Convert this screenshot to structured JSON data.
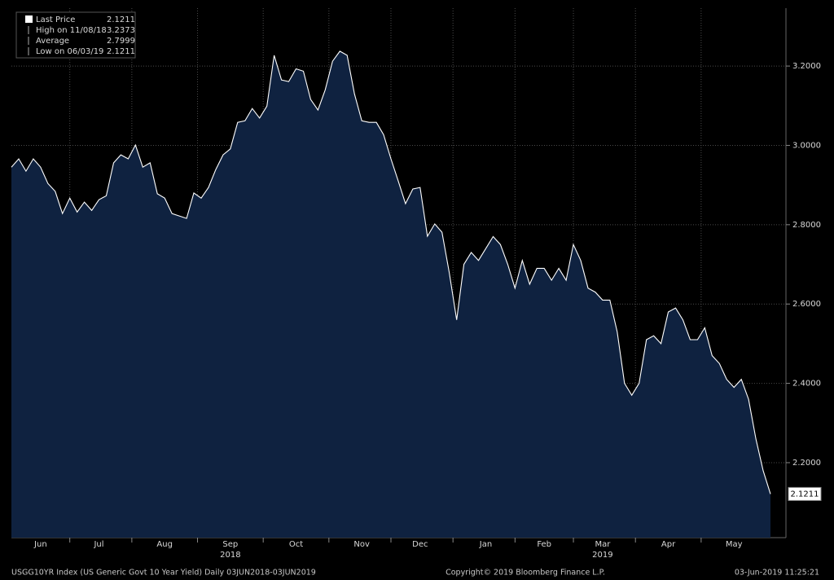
{
  "chart_data": {
    "type": "area",
    "legend": [
      {
        "label": "Last Price",
        "value": "2.1211"
      },
      {
        "label": "High on 11/08/18",
        "value": "3.2373"
      },
      {
        "label": "Average",
        "value": "2.7999"
      },
      {
        "label": "Low on 06/03/19",
        "value": "2.1211"
      }
    ],
    "last_label": "2.1211",
    "footer_left": "USGG10YR Index (US Generic Govt 10 Year Yield)  Daily 03JUN2018-03JUN2019",
    "footer_center": "Copyright© 2019 Bloomberg Finance L.P.",
    "footer_right": "03-Jun-2019 11:25:21",
    "categories": [
      null,
      null,
      null,
      null,
      "Jun",
      null,
      null,
      null,
      null,
      null,
      null,
      null,
      "Jul",
      null,
      null,
      null,
      null,
      null,
      null,
      null,
      null,
      "Aug",
      null,
      null,
      null,
      null,
      null,
      null,
      null,
      null,
      "Sep",
      null,
      null,
      null,
      null,
      null,
      null,
      null,
      null,
      "Oct",
      null,
      null,
      null,
      null,
      null,
      null,
      null,
      null,
      "Nov",
      null,
      null,
      null,
      null,
      null,
      null,
      null,
      "Dec",
      null,
      null,
      null,
      null,
      null,
      null,
      null,
      null,
      "Jan",
      null,
      null,
      null,
      null,
      null,
      null,
      null,
      "Feb",
      null,
      null,
      null,
      null,
      null,
      null,
      null,
      "Mar",
      null,
      null,
      null,
      null,
      null,
      null,
      null,
      null,
      "Apr",
      null,
      null,
      null,
      null,
      null,
      null,
      null,
      null,
      "May",
      null,
      null,
      null,
      null,
      null
    ],
    "year_categories": [
      null,
      null,
      null,
      null,
      null,
      null,
      null,
      null,
      null,
      null,
      null,
      null,
      null,
      null,
      null,
      null,
      null,
      null,
      null,
      null,
      null,
      null,
      null,
      null,
      null,
      null,
      null,
      null,
      null,
      null,
      "2018",
      null,
      null,
      null,
      null,
      null,
      null,
      null,
      null,
      null,
      null,
      null,
      null,
      null,
      null,
      null,
      null,
      null,
      null,
      null,
      null,
      null,
      null,
      null,
      null,
      null,
      null,
      null,
      null,
      null,
      null,
      null,
      null,
      null,
      null,
      null,
      null,
      null,
      null,
      null,
      null,
      null,
      null,
      null,
      null,
      null,
      null,
      null,
      null,
      null,
      null,
      "2019",
      null,
      null,
      null,
      null,
      null,
      null,
      null,
      null,
      null,
      null,
      null,
      null,
      null,
      null,
      null,
      null,
      null,
      null,
      null,
      null,
      null,
      null,
      null
    ],
    "values": [
      2.945,
      2.966,
      2.935,
      2.966,
      2.945,
      2.904,
      2.884,
      2.828,
      2.867,
      2.832,
      2.857,
      2.836,
      2.863,
      2.873,
      2.956,
      2.976,
      2.966,
      3.001,
      2.945,
      2.956,
      2.878,
      2.867,
      2.828,
      2.822,
      2.816,
      2.88,
      2.867,
      2.894,
      2.939,
      2.976,
      2.991,
      3.058,
      3.062,
      3.093,
      3.069,
      3.099,
      3.227,
      3.165,
      3.161,
      3.193,
      3.187,
      3.116,
      3.089,
      3.14,
      3.212,
      3.2373,
      3.227,
      3.13,
      3.062,
      3.058,
      3.058,
      3.027,
      2.966,
      2.91,
      2.853,
      2.89,
      2.894,
      2.771,
      2.802,
      2.781,
      2.678,
      2.56,
      2.7,
      2.73,
      2.71,
      2.74,
      2.77,
      2.75,
      2.7,
      2.64,
      2.71,
      2.65,
      2.69,
      2.69,
      2.66,
      2.69,
      2.66,
      2.75,
      2.71,
      2.64,
      2.63,
      2.61,
      2.61,
      2.53,
      2.4,
      2.37,
      2.4,
      2.51,
      2.52,
      2.5,
      2.58,
      2.59,
      2.56,
      2.51,
      2.51,
      2.54,
      2.47,
      2.45,
      2.41,
      2.39,
      2.41,
      2.36,
      2.26,
      2.18,
      2.1211
    ],
    "color": "#ffffff",
    "fill": "#0f2240",
    "ylim": [
      2.011,
      3.346
    ],
    "yticks": [
      {
        "value": 2.2,
        "label": "2.2000"
      },
      {
        "value": 2.4,
        "label": "2.4000"
      },
      {
        "value": 2.6,
        "label": "2.6000"
      },
      {
        "value": 2.8,
        "label": "2.8000"
      },
      {
        "value": 3.0,
        "label": "3.0000"
      },
      {
        "value": 3.2,
        "label": "3.2000"
      }
    ],
    "grid": true
  }
}
